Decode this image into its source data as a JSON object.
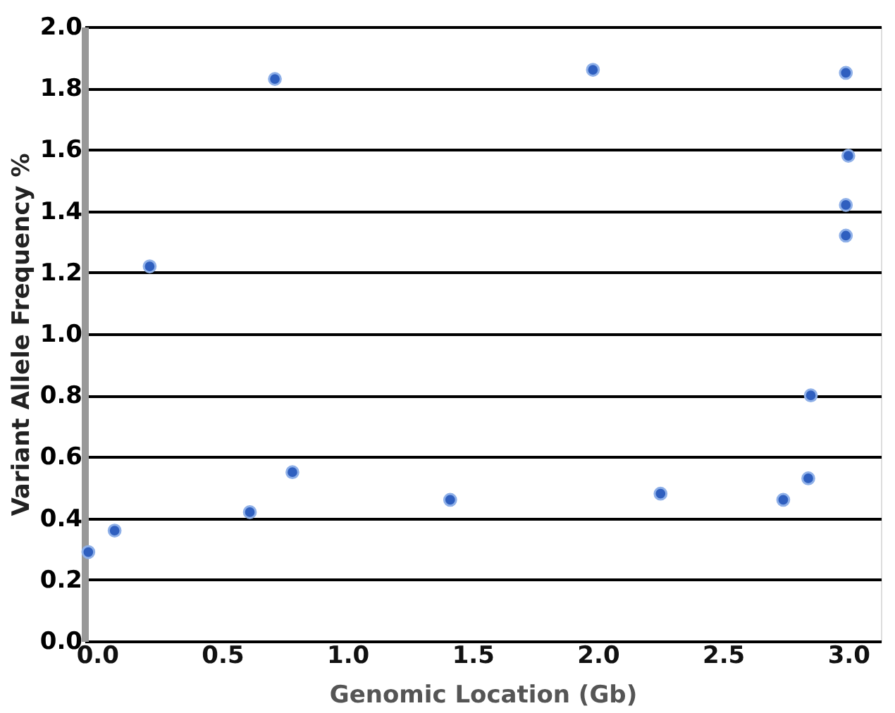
{
  "chart_data": {
    "type": "scatter",
    "xlabel": "Genomic Location (Gb)",
    "ylabel": "Variant Allele Frequency %",
    "x": [
      -0.035,
      0.07,
      0.21,
      0.71,
      0.61,
      0.78,
      1.41,
      1.98,
      2.25,
      2.74,
      2.84,
      2.85,
      2.99,
      3.0,
      2.99,
      2.99
    ],
    "series": [
      {
        "color": "#2f5fbf",
        "values": [
          0.29,
          0.36,
          1.22,
          1.83,
          0.42,
          0.55,
          0.46,
          1.86,
          0.48,
          0.46,
          0.53,
          0.8,
          1.85,
          1.58,
          1.42,
          1.32
        ]
      }
    ],
    "xlim": [
      -0.05,
      3.13
    ],
    "xticks": [
      {
        "value": 0,
        "label": "0.0"
      },
      0.5,
      {
        "value": 1,
        "label": "1.0"
      },
      1.5,
      {
        "value": 2,
        "label": "2.0"
      },
      2.5,
      {
        "value": 3,
        "label": "3.0"
      }
    ],
    "ylim": [
      0,
      2
    ],
    "yticks": [
      {
        "value": 0,
        "label": "0.0"
      },
      0.2,
      0.4,
      0.6,
      0.8,
      {
        "value": 1,
        "label": "1.0"
      },
      1.2,
      1.4,
      1.6,
      1.8,
      {
        "value": 2,
        "label": "2.0"
      }
    ],
    "grid": "y",
    "marker": "circle",
    "legend": false
  }
}
